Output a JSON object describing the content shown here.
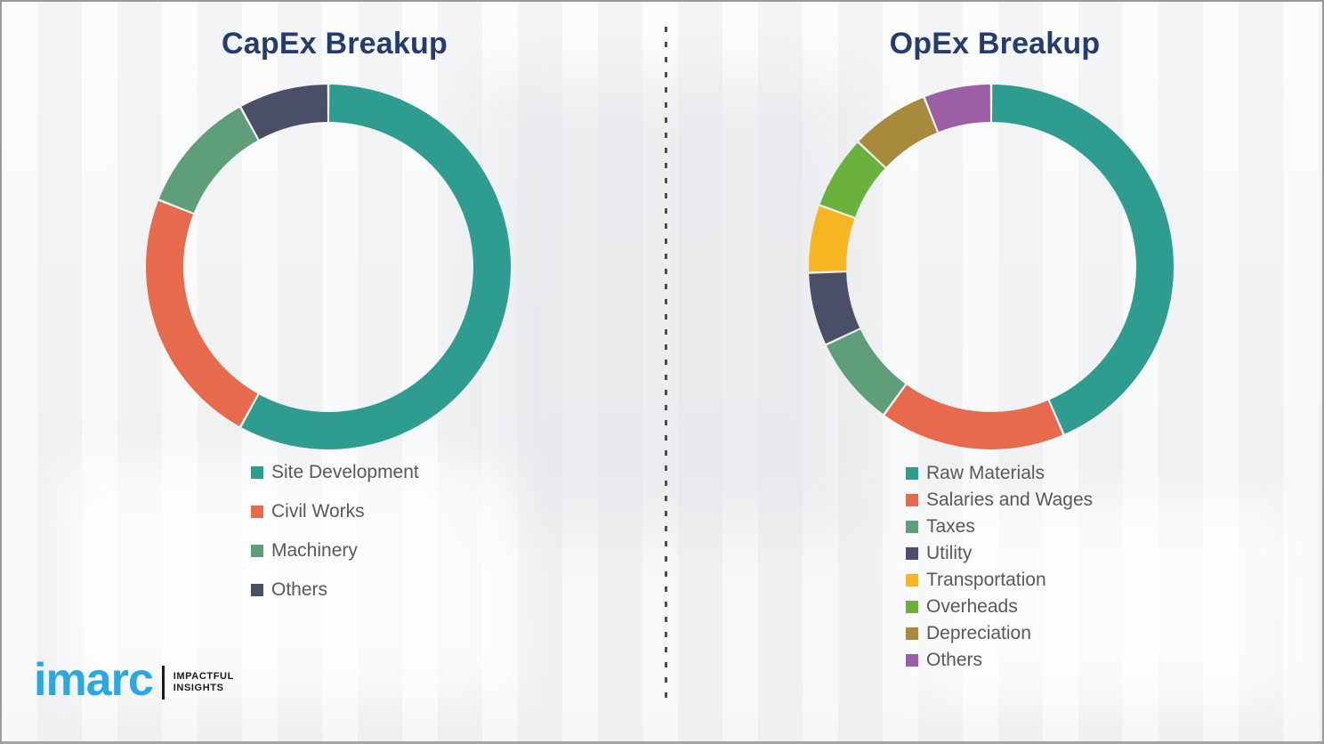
{
  "chart_data": [
    {
      "type": "donut",
      "title": "CapEx Breakup",
      "categories": [
        "Site Development",
        "Civil Works",
        "Machinery",
        "Others"
      ],
      "values": [
        58,
        23,
        11,
        8
      ],
      "unit": "percent (estimated from arc angles; no numeric labels shown)",
      "colors": [
        "#2E9C8F",
        "#E66A4B",
        "#5E9E78",
        "#4A4F67"
      ],
      "start_angle_deg": 0,
      "direction": "clockwise",
      "legend_position": "below-chart-left"
    },
    {
      "type": "donut",
      "title": "OpEx Breakup",
      "categories": [
        "Raw Materials",
        "Salaries and Wages",
        "Taxes",
        "Utility",
        "Transportation",
        "Overheads",
        "Depreciation",
        "Others"
      ],
      "values": [
        43.5,
        16.5,
        8,
        6.5,
        6,
        6.5,
        7,
        6
      ],
      "unit": "percent (estimated from arc angles; no numeric labels shown)",
      "colors": [
        "#2E9C8F",
        "#E66A4B",
        "#5E9E78",
        "#4A4F67",
        "#F6B621",
        "#6BB23D",
        "#A78A3C",
        "#9C5FA5"
      ],
      "start_angle_deg": 0,
      "direction": "clockwise",
      "legend_position": "below-chart-left"
    }
  ],
  "logo": {
    "brand": "imarc",
    "tagline_line1": "IMPACTFUL",
    "tagline_line2": "INSIGHTS",
    "brand_color": "#29A9E1"
  },
  "styles": {
    "title_color": "#263C6D",
    "legend_text_color": "#595959",
    "background_color": "#F3F4F5",
    "divider_color": "#4D4D4D"
  }
}
